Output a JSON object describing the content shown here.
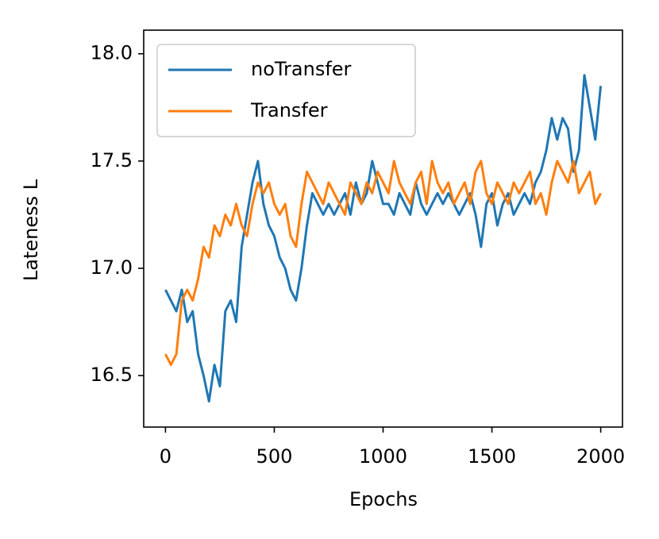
{
  "chart_data": {
    "type": "line",
    "xlabel": "Epochs",
    "ylabel": "Lateness L",
    "x": [
      0,
      25,
      50,
      75,
      100,
      125,
      150,
      175,
      200,
      225,
      250,
      275,
      300,
      325,
      350,
      375,
      400,
      425,
      450,
      475,
      500,
      525,
      550,
      575,
      600,
      625,
      650,
      675,
      700,
      725,
      750,
      775,
      800,
      825,
      850,
      875,
      900,
      925,
      950,
      975,
      1000,
      1025,
      1050,
      1075,
      1100,
      1125,
      1150,
      1175,
      1200,
      1225,
      1250,
      1275,
      1300,
      1325,
      1350,
      1375,
      1400,
      1425,
      1450,
      1475,
      1500,
      1525,
      1550,
      1575,
      1600,
      1625,
      1650,
      1675,
      1700,
      1725,
      1750,
      1775,
      1800,
      1825,
      1850,
      1875,
      1900,
      1925,
      1950,
      1975,
      2000
    ],
    "series": [
      {
        "name": "noTransfer",
        "color": "#1f77b4",
        "values": [
          16.9,
          16.85,
          16.8,
          16.9,
          16.75,
          16.8,
          16.6,
          16.5,
          16.38,
          16.55,
          16.45,
          16.8,
          16.85,
          16.75,
          17.1,
          17.25,
          17.4,
          17.5,
          17.3,
          17.2,
          17.15,
          17.05,
          17.0,
          16.9,
          16.85,
          17.0,
          17.2,
          17.35,
          17.3,
          17.25,
          17.3,
          17.25,
          17.3,
          17.35,
          17.25,
          17.4,
          17.3,
          17.35,
          17.5,
          17.4,
          17.3,
          17.3,
          17.25,
          17.35,
          17.3,
          17.25,
          17.4,
          17.3,
          17.25,
          17.3,
          17.35,
          17.3,
          17.35,
          17.3,
          17.25,
          17.3,
          17.35,
          17.25,
          17.1,
          17.3,
          17.35,
          17.2,
          17.3,
          17.35,
          17.25,
          17.3,
          17.35,
          17.3,
          17.4,
          17.45,
          17.55,
          17.7,
          17.6,
          17.7,
          17.65,
          17.45,
          17.55,
          17.9,
          17.75,
          17.6,
          17.85
        ]
      },
      {
        "name": "Transfer",
        "color": "#ff7f0e",
        "values": [
          16.6,
          16.55,
          16.6,
          16.85,
          16.9,
          16.85,
          16.95,
          17.1,
          17.05,
          17.2,
          17.15,
          17.25,
          17.2,
          17.3,
          17.2,
          17.15,
          17.3,
          17.4,
          17.35,
          17.4,
          17.3,
          17.25,
          17.3,
          17.15,
          17.1,
          17.3,
          17.45,
          17.4,
          17.35,
          17.3,
          17.4,
          17.35,
          17.3,
          17.25,
          17.4,
          17.35,
          17.3,
          17.4,
          17.35,
          17.45,
          17.4,
          17.35,
          17.5,
          17.4,
          17.35,
          17.3,
          17.4,
          17.45,
          17.3,
          17.5,
          17.4,
          17.35,
          17.4,
          17.3,
          17.35,
          17.4,
          17.3,
          17.45,
          17.5,
          17.35,
          17.3,
          17.4,
          17.35,
          17.3,
          17.4,
          17.35,
          17.4,
          17.45,
          17.3,
          17.35,
          17.25,
          17.4,
          17.5,
          17.45,
          17.4,
          17.5,
          17.35,
          17.4,
          17.45,
          17.3,
          17.35
        ]
      }
    ],
    "xlim": [
      -100,
      2100
    ],
    "ylim": [
      16.26,
      18.11
    ],
    "xticks": [
      0,
      500,
      1000,
      1500,
      2000
    ],
    "yticks": [
      {
        "value": 16.5,
        "label": "16.5"
      },
      {
        "value": 17,
        "label": "17.0"
      },
      {
        "value": 17.5,
        "label": "17.5"
      },
      {
        "value": 18,
        "label": "18.0"
      }
    ],
    "legend": "upper left"
  }
}
